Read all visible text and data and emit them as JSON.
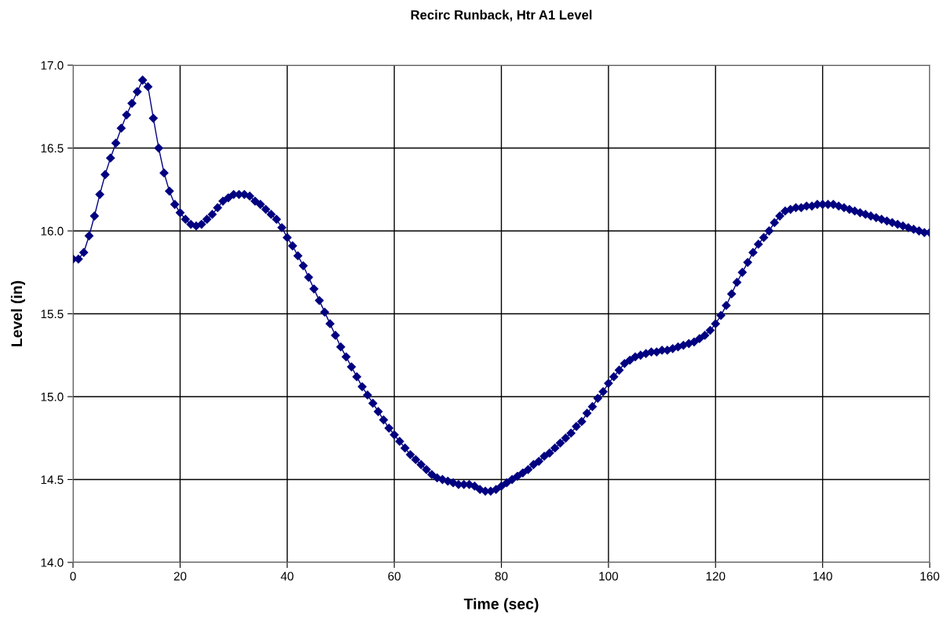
{
  "chart_data": {
    "type": "line",
    "title": "Recirc Runback, Htr A1 Level",
    "xlabel": "Time (sec)",
    "ylabel": "Level (in)",
    "x": [
      0,
      1,
      2,
      3,
      4,
      5,
      6,
      7,
      8,
      9,
      10,
      11,
      12,
      13,
      14,
      15,
      16,
      17,
      18,
      19,
      20,
      21,
      22,
      23,
      24,
      25,
      26,
      27,
      28,
      29,
      30,
      31,
      32,
      33,
      34,
      35,
      36,
      37,
      38,
      39,
      40,
      41,
      42,
      43,
      44,
      45,
      46,
      47,
      48,
      49,
      50,
      51,
      52,
      53,
      54,
      55,
      56,
      57,
      58,
      59,
      60,
      61,
      62,
      63,
      64,
      65,
      66,
      67,
      68,
      69,
      70,
      71,
      72,
      73,
      74,
      75,
      76,
      77,
      78,
      79,
      80,
      81,
      82,
      83,
      84,
      85,
      86,
      87,
      88,
      89,
      90,
      91,
      92,
      93,
      94,
      95,
      96,
      97,
      98,
      99,
      100,
      101,
      102,
      103,
      104,
      105,
      106,
      107,
      108,
      109,
      110,
      111,
      112,
      113,
      114,
      115,
      116,
      117,
      118,
      119,
      120,
      121,
      122,
      123,
      124,
      125,
      126,
      127,
      128,
      129,
      130,
      131,
      132,
      133,
      134,
      135,
      136,
      137,
      138,
      139,
      140,
      141,
      142,
      143,
      144,
      145,
      146,
      147,
      148,
      149,
      150,
      151,
      152,
      153,
      154,
      155,
      156,
      157,
      158,
      159,
      160
    ],
    "series": [
      {
        "color": "#000080",
        "values": [
          15.83,
          15.83,
          15.87,
          15.97,
          16.09,
          16.22,
          16.34,
          16.44,
          16.53,
          16.62,
          16.7,
          16.77,
          16.84,
          16.91,
          16.87,
          16.68,
          16.5,
          16.35,
          16.24,
          16.16,
          16.11,
          16.07,
          16.04,
          16.03,
          16.04,
          16.07,
          16.1,
          16.14,
          16.18,
          16.2,
          16.22,
          16.22,
          16.22,
          16.21,
          16.18,
          16.16,
          16.13,
          16.1,
          16.07,
          16.02,
          15.96,
          15.91,
          15.85,
          15.79,
          15.72,
          15.65,
          15.58,
          15.51,
          15.44,
          15.37,
          15.3,
          15.24,
          15.18,
          15.12,
          15.06,
          15.01,
          14.96,
          14.91,
          14.86,
          14.81,
          14.77,
          14.73,
          14.69,
          14.65,
          14.62,
          14.59,
          14.56,
          14.53,
          14.51,
          14.5,
          14.49,
          14.48,
          14.47,
          14.47,
          14.47,
          14.46,
          14.44,
          14.43,
          14.43,
          14.44,
          14.46,
          14.48,
          14.5,
          14.52,
          14.54,
          14.56,
          14.59,
          14.61,
          14.64,
          14.66,
          14.69,
          14.72,
          14.75,
          14.78,
          14.82,
          14.85,
          14.9,
          14.94,
          14.99,
          15.03,
          15.08,
          15.12,
          15.16,
          15.2,
          15.22,
          15.24,
          15.25,
          15.26,
          15.27,
          15.27,
          15.28,
          15.28,
          15.29,
          15.3,
          15.31,
          15.32,
          15.33,
          15.35,
          15.37,
          15.4,
          15.44,
          15.49,
          15.55,
          15.62,
          15.69,
          15.75,
          15.81,
          15.87,
          15.92,
          15.96,
          16.0,
          16.05,
          16.09,
          16.12,
          16.13,
          16.14,
          16.14,
          16.15,
          16.15,
          16.16,
          16.16,
          16.16,
          16.16,
          16.15,
          16.14,
          16.13,
          16.12,
          16.11,
          16.1,
          16.09,
          16.08,
          16.07,
          16.06,
          16.05,
          16.04,
          16.03,
          16.02,
          16.01,
          16.0,
          15.99,
          15.99
        ]
      }
    ],
    "xlim": [
      0,
      160
    ],
    "xticks": [
      0,
      20,
      40,
      60,
      80,
      100,
      120,
      140,
      160
    ],
    "ylim": [
      14.0,
      17.0
    ],
    "yticks": [
      {
        "value": 14.0,
        "label": "14.0"
      },
      {
        "value": 14.5,
        "label": "14.5"
      },
      {
        "value": 15.0,
        "label": "15.0"
      },
      {
        "value": 15.5,
        "label": "15.5"
      },
      {
        "value": 16.0,
        "label": "16.0"
      },
      {
        "value": 16.5,
        "label": "16.5"
      },
      {
        "value": 17.0,
        "label": "17.0"
      }
    ],
    "grid": true,
    "marker": "diamond",
    "line_style": "solid"
  }
}
